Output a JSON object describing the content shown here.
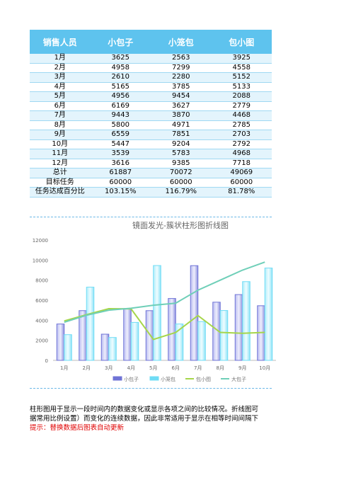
{
  "table": {
    "header": [
      "销售人员",
      "小包子",
      "小笼包",
      "包小图"
    ],
    "rows": [
      [
        "1月",
        "3625",
        "2563",
        "3925"
      ],
      [
        "2月",
        "4958",
        "7299",
        "4558"
      ],
      [
        "3月",
        "2610",
        "2280",
        "5152"
      ],
      [
        "4月",
        "5165",
        "3785",
        "5133"
      ],
      [
        "5月",
        "4956",
        "9454",
        "2088"
      ],
      [
        "6月",
        "6169",
        "3627",
        "2779"
      ],
      [
        "7月",
        "9443",
        "3870",
        "4468"
      ],
      [
        "8月",
        "5800",
        "4971",
        "2785"
      ],
      [
        "9月",
        "6559",
        "7851",
        "2703"
      ],
      [
        "10月",
        "5447",
        "9204",
        "2792"
      ],
      [
        "11月",
        "3539",
        "5783",
        "4968"
      ],
      [
        "12月",
        "3616",
        "9385",
        "7718"
      ],
      [
        "总计",
        "61887",
        "70072",
        "49069"
      ],
      [
        "目标任务",
        "60000",
        "60000",
        "60000"
      ],
      [
        "任务达成百分比",
        "103.15%",
        "116.79%",
        "81.78%"
      ]
    ]
  },
  "chart_data": {
    "type": "bar-line",
    "title": "镜面发光-簇状柱形图折线图",
    "categories": [
      "1月",
      "2月",
      "3月",
      "4月",
      "5月",
      "6月",
      "7月",
      "8月",
      "9月",
      "10月"
    ],
    "series": [
      {
        "name": "小包子",
        "kind": "bar",
        "color": "#6f73d6",
        "values": [
          3625,
          4958,
          2610,
          5165,
          4956,
          6169,
          9443,
          5800,
          6559,
          5447
        ]
      },
      {
        "name": "小笼包",
        "kind": "bar",
        "color": "#6fdcf5",
        "values": [
          2563,
          7299,
          2280,
          3785,
          9454,
          3627,
          3870,
          4971,
          7851,
          9204
        ]
      },
      {
        "name": "包小图",
        "kind": "line",
        "color": "#a6d64a",
        "values": [
          3925,
          4558,
          5152,
          5133,
          2088,
          2779,
          4468,
          2785,
          2703,
          2792
        ]
      },
      {
        "name": "大包子",
        "kind": "line",
        "color": "#6fcfb8",
        "values": [
          3800,
          4500,
          5000,
          5200,
          5500,
          5700,
          7000,
          8000,
          9000,
          9800
        ]
      }
    ],
    "ylim": [
      0,
      12000
    ],
    "yticks": [
      0,
      2000,
      4000,
      6000,
      8000,
      10000,
      12000
    ],
    "grid": false,
    "legend": "bottom"
  },
  "footer": {
    "lines": [
      "柱形图用于显示一段时间内的数据变化或显示各项之间的比较情况。折线图可",
      "据常用比例设置）而变化的连续数据，因此非常适用于显示在相等时间间隔下"
    ],
    "tip": "提示：替换数据后图表自动更新"
  }
}
